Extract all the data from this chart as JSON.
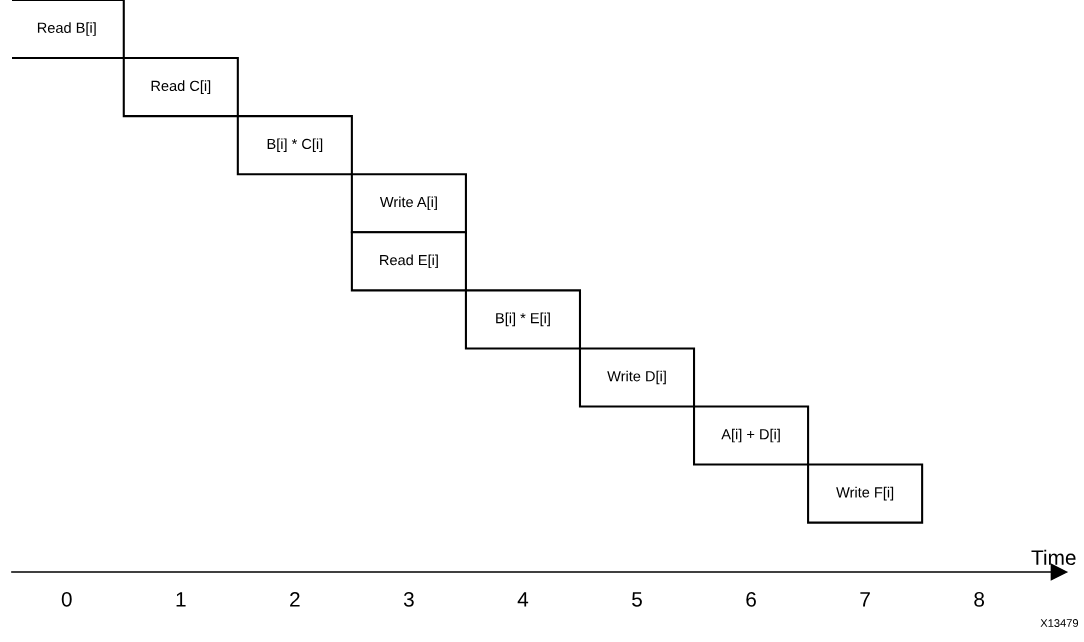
{
  "chart_data": {
    "type": "bar",
    "orientation": "horizontal",
    "xlabel": "Time",
    "categories": [
      null,
      null,
      null,
      null,
      null,
      null,
      null,
      null,
      null
    ],
    "base": [
      -0.5,
      0.5,
      1.5,
      2.5,
      2.5,
      3.5,
      4.5,
      5.5,
      6.5
    ],
    "values": [
      1,
      1,
      1,
      1,
      1,
      1,
      1,
      1,
      1
    ],
    "value_labels": [
      "Read B[i]",
      "Read C[i]",
      "B[i] * C[i]",
      "Write A[i]",
      "Read E[i]",
      "B[i] * E[i]",
      "Write D[i]",
      "A[i] + D[i]",
      "Write F[i]"
    ],
    "color": "#ffffff",
    "xlim": [
      -0.48,
      8.7
    ],
    "xticks": [
      0,
      1,
      2,
      3,
      4,
      5,
      6,
      7,
      8
    ],
    "tick_labels": "x",
    "grid": false,
    "legend": false,
    "annotations": [
      "X13479"
    ]
  }
}
